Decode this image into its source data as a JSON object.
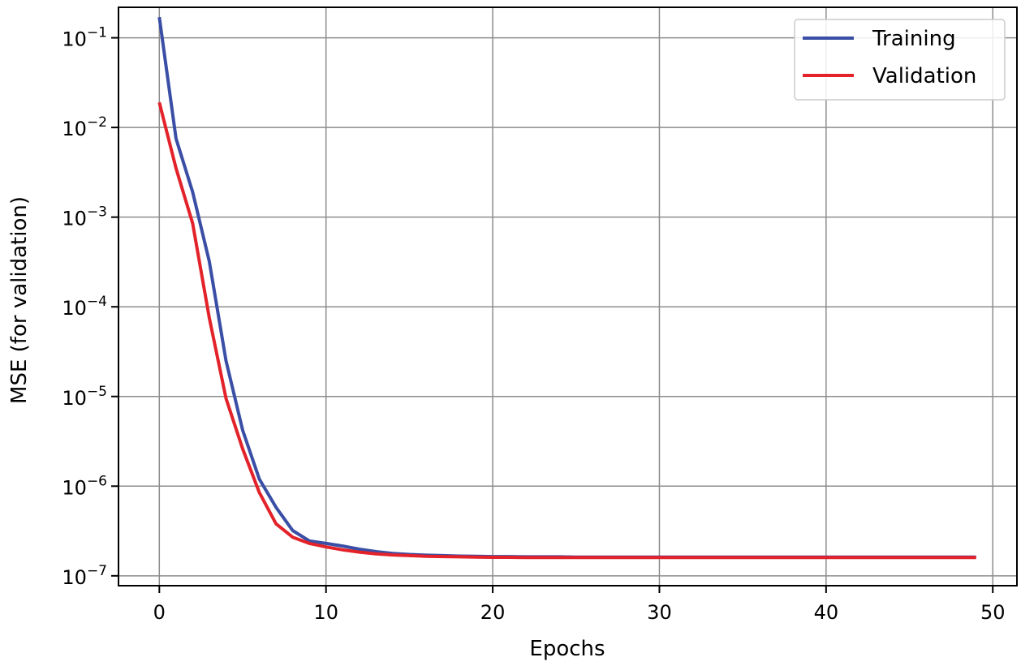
{
  "chart_data": {
    "type": "line",
    "xlabel": "Epochs",
    "ylabel": "MSE (for validation)",
    "y_scale": "log",
    "grid": true,
    "legend_position": "top-right",
    "xlim": [
      -2.45,
      51.45
    ],
    "ylim_log10": [
      -7.11,
      -0.66
    ],
    "x_ticks": [
      0,
      10,
      20,
      30,
      40,
      50
    ],
    "x_tick_labels": [
      "0",
      "10",
      "20",
      "30",
      "40",
      "50"
    ],
    "y_tick_exponents": [
      -7,
      -6,
      -5,
      -4,
      -3,
      -2,
      -1
    ],
    "y_tick_base": "10",
    "y_tick_labels": [
      "−7",
      "−6",
      "−5",
      "−4",
      "−3",
      "−2",
      "−1"
    ],
    "x": [
      0,
      1,
      2,
      3,
      4,
      5,
      6,
      7,
      8,
      9,
      10,
      11,
      12,
      13,
      14,
      15,
      16,
      17,
      18,
      19,
      20,
      21,
      22,
      23,
      24,
      25,
      26,
      27,
      28,
      29,
      30,
      31,
      32,
      33,
      34,
      35,
      36,
      37,
      38,
      39,
      40,
      41,
      42,
      43,
      44,
      45,
      46,
      47,
      48,
      49
    ],
    "series": [
      {
        "name": "Training",
        "color": "#3a4ea6",
        "values": [
          0.17,
          0.0075,
          0.0019,
          0.00032,
          2.5e-05,
          4.2e-06,
          1.2e-06,
          5.8e-07,
          3.2e-07,
          2.45e-07,
          2.3e-07,
          2.15e-07,
          1.98e-07,
          1.86e-07,
          1.78e-07,
          1.73e-07,
          1.7e-07,
          1.68e-07,
          1.66e-07,
          1.65e-07,
          1.64e-07,
          1.64e-07,
          1.63e-07,
          1.63e-07,
          1.63e-07,
          1.62e-07,
          1.62e-07,
          1.62e-07,
          1.62e-07,
          1.62e-07,
          1.62e-07,
          1.62e-07,
          1.62e-07,
          1.62e-07,
          1.62e-07,
          1.62e-07,
          1.62e-07,
          1.62e-07,
          1.62e-07,
          1.62e-07,
          1.62e-07,
          1.62e-07,
          1.62e-07,
          1.62e-07,
          1.62e-07,
          1.62e-07,
          1.62e-07,
          1.62e-07,
          1.62e-07,
          1.62e-07
        ]
      },
      {
        "name": "Validation",
        "color": "#e3222a",
        "values": [
          0.019,
          0.0035,
          0.00085,
          7.5e-05,
          9.5e-06,
          2.6e-06,
          8.5e-07,
          3.8e-07,
          2.7e-07,
          2.3e-07,
          2.1e-07,
          1.95e-07,
          1.84e-07,
          1.76e-07,
          1.71e-07,
          1.68e-07,
          1.65e-07,
          1.64e-07,
          1.63e-07,
          1.62e-07,
          1.61e-07,
          1.61e-07,
          1.6e-07,
          1.6e-07,
          1.6e-07,
          1.6e-07,
          1.6e-07,
          1.6e-07,
          1.6e-07,
          1.6e-07,
          1.6e-07,
          1.6e-07,
          1.6e-07,
          1.6e-07,
          1.6e-07,
          1.6e-07,
          1.6e-07,
          1.6e-07,
          1.6e-07,
          1.6e-07,
          1.6e-07,
          1.6e-07,
          1.6e-07,
          1.6e-07,
          1.6e-07,
          1.6e-07,
          1.6e-07,
          1.6e-07,
          1.6e-07,
          1.6e-07
        ]
      }
    ]
  }
}
